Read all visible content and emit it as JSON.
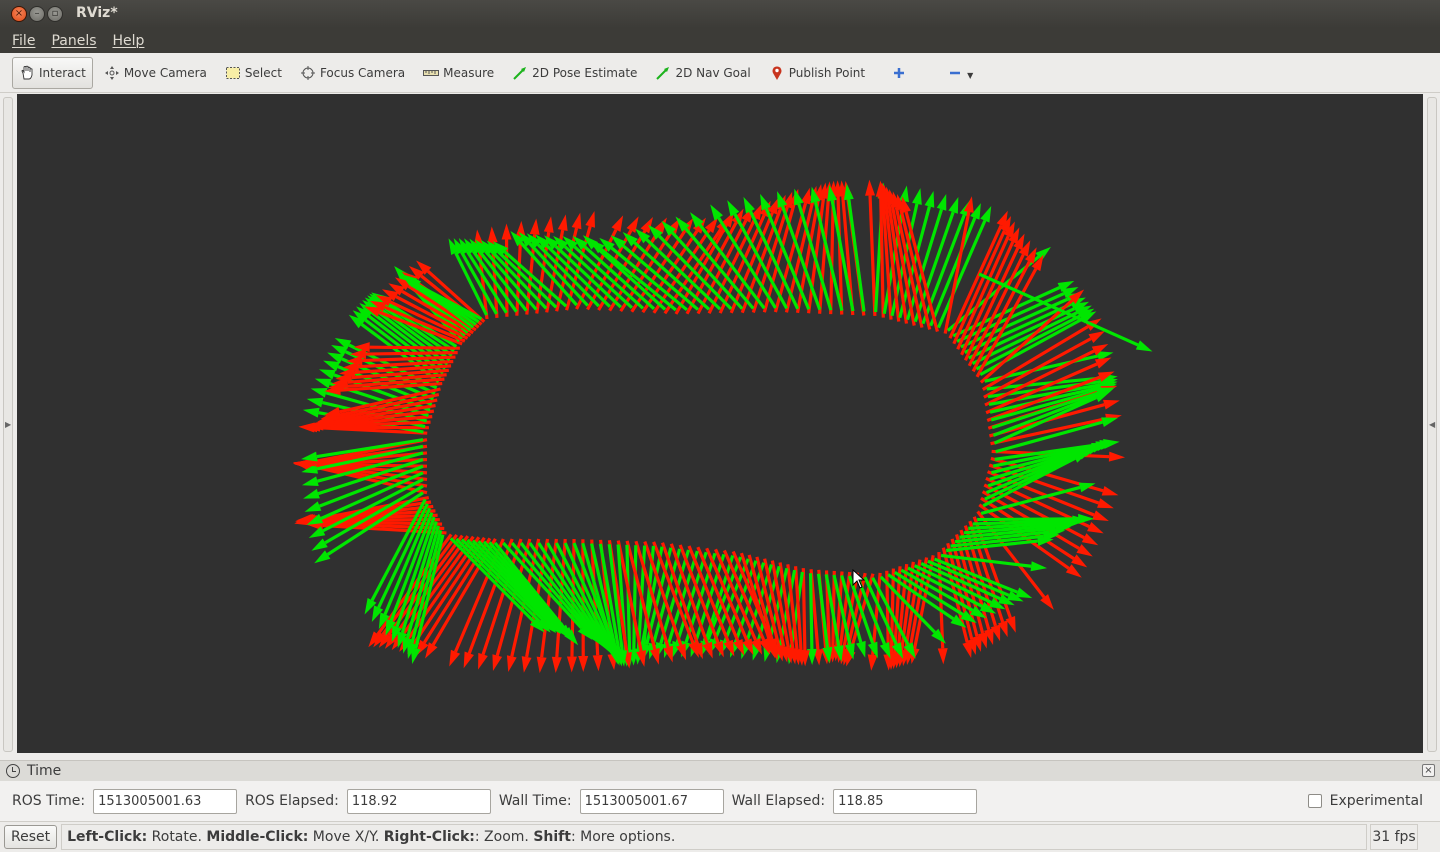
{
  "window": {
    "title": "RViz*"
  },
  "menu": [
    "File",
    "Panels",
    "Help"
  ],
  "toolbar": {
    "tools": [
      {
        "label": "Interact",
        "icon": "hand-icon",
        "active": true
      },
      {
        "label": "Move Camera",
        "icon": "move-camera-icon"
      },
      {
        "label": "Select",
        "icon": "select-icon"
      },
      {
        "label": "Focus Camera",
        "icon": "focus-camera-icon"
      },
      {
        "label": "Measure",
        "icon": "ruler-icon"
      },
      {
        "label": "2D Pose Estimate",
        "icon": "pose-arrow-icon"
      },
      {
        "label": "2D Nav Goal",
        "icon": "nav-goal-icon"
      },
      {
        "label": "Publish Point",
        "icon": "map-pin-icon"
      }
    ]
  },
  "colors": {
    "viewport_bg": "#303030",
    "arrow_red": "#ff1a00",
    "arrow_green": "#00e600"
  },
  "time_panel": {
    "title": "Time",
    "ros_time_label": "ROS Time:",
    "ros_time": "1513005001.63",
    "ros_elapsed_label": "ROS Elapsed:",
    "ros_elapsed": "118.92",
    "wall_time_label": "Wall Time:",
    "wall_time": "1513005001.67",
    "wall_elapsed_label": "Wall Elapsed:",
    "wall_elapsed": "118.85",
    "experimental_label": "Experimental"
  },
  "status": {
    "reset_label": "Reset",
    "help": [
      {
        "b": "Left-Click:",
        "t": " Rotate. "
      },
      {
        "b": "Middle-Click:",
        "t": " Move X/Y. "
      },
      {
        "b": "Right-Click:",
        "t": ": Zoom. "
      },
      {
        "b": "Shift",
        "t": ": More options."
      }
    ],
    "fps": "31 fps"
  }
}
